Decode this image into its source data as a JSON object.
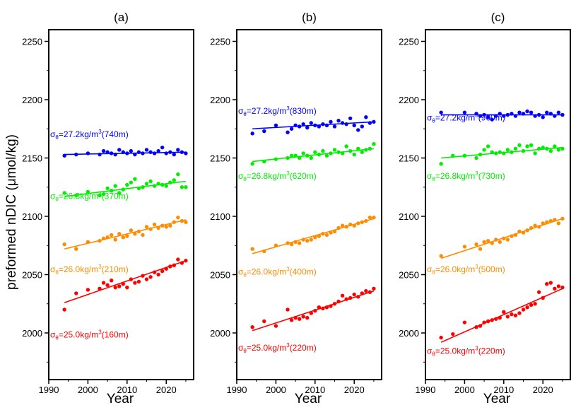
{
  "figure": {
    "ylabel": "preformed nDIC (μmol/kg)",
    "xlabel": "Year"
  },
  "chart_data": [
    {
      "type": "scatter",
      "title": "(a)",
      "xlabel": "Year",
      "ylabel": "preformed nDIC (μmol/kg)",
      "xlim": [
        1990,
        2027
      ],
      "ylim": [
        1960,
        2260
      ],
      "x_ticks": [
        1990,
        2000,
        2010,
        2020
      ],
      "y_ticks": [
        2000,
        2050,
        2100,
        2150,
        2200,
        2250
      ],
      "grid": false,
      "series": [
        {
          "label_prefix": "σ",
          "label_sub": "θ",
          "label_main": "=27.2kg/m",
          "label_sup": "3",
          "label_tail": "(740m)",
          "color": "#0000ff",
          "x": [
            1994,
            1997,
            2000,
            2003,
            2004,
            2005,
            2006,
            2007,
            2008,
            2009,
            2010,
            2011,
            2012,
            2013,
            2014,
            2015,
            2016,
            2017,
            2018,
            2019,
            2020,
            2021,
            2022,
            2023,
            2024,
            2025
          ],
          "y": [
            2152,
            2153,
            2154,
            2153,
            2156,
            2155,
            2154,
            2153,
            2157,
            2155,
            2154,
            2156,
            2153,
            2155,
            2154,
            2157,
            2155,
            2154,
            2156,
            2159,
            2154,
            2155,
            2153,
            2157,
            2155,
            2154
          ],
          "trend": [
            [
              1994,
              2153
            ],
            [
              2025,
              2155
            ]
          ]
        },
        {
          "label_prefix": "σ",
          "label_sub": "θ",
          "label_main": "=26.8kg/m",
          "label_sup": "3",
          "label_tail": "(370m)",
          "color": "#00ee00",
          "x": [
            1994,
            1997,
            2000,
            2003,
            2004,
            2005,
            2006,
            2007,
            2008,
            2009,
            2010,
            2011,
            2012,
            2013,
            2014,
            2015,
            2016,
            2017,
            2018,
            2019,
            2020,
            2021,
            2022,
            2023,
            2024,
            2025
          ],
          "y": [
            2120,
            2118,
            2121,
            2118,
            2119,
            2124,
            2122,
            2126,
            2120,
            2123,
            2127,
            2129,
            2132,
            2124,
            2125,
            2128,
            2130,
            2126,
            2128,
            2127,
            2126,
            2129,
            2131,
            2136,
            2125,
            2125
          ],
          "trend": [
            [
              1994,
              2117
            ],
            [
              2025,
              2130
            ]
          ]
        },
        {
          "label_prefix": "σ",
          "label_sub": "θ",
          "label_main": "=26.0kg/m",
          "label_sup": "3",
          "label_tail": "(210m)",
          "color": "#ff8c00",
          "x": [
            1994,
            1997,
            2000,
            2003,
            2004,
            2005,
            2006,
            2007,
            2008,
            2009,
            2010,
            2011,
            2012,
            2013,
            2014,
            2015,
            2016,
            2017,
            2018,
            2019,
            2020,
            2021,
            2022,
            2023,
            2024,
            2025
          ],
          "y": [
            2076,
            2072,
            2078,
            2079,
            2081,
            2082,
            2084,
            2080,
            2085,
            2082,
            2083,
            2088,
            2085,
            2087,
            2084,
            2091,
            2089,
            2093,
            2090,
            2092,
            2091,
            2092,
            2095,
            2099,
            2096,
            2095
          ],
          "trend": [
            [
              1994,
              2072
            ],
            [
              2025,
              2097
            ]
          ]
        },
        {
          "label_prefix": "σ",
          "label_sub": "θ",
          "label_main": "=25.0kg/m",
          "label_sup": "3",
          "label_tail": "(160m)",
          "color": "#ff0000",
          "x": [
            1994,
            1997,
            2000,
            2003,
            2004,
            2005,
            2006,
            2007,
            2008,
            2009,
            2010,
            2011,
            2012,
            2013,
            2014,
            2015,
            2016,
            2017,
            2018,
            2019,
            2020,
            2021,
            2022,
            2023,
            2024,
            2025
          ],
          "y": [
            2020,
            2034,
            2037,
            2038,
            2043,
            2041,
            2045,
            2039,
            2040,
            2042,
            2039,
            2046,
            2043,
            2044,
            2049,
            2046,
            2048,
            2052,
            2050,
            2053,
            2055,
            2057,
            2058,
            2063,
            2060,
            2062
          ],
          "trend": [
            [
              1994,
              2026
            ],
            [
              2025,
              2062
            ]
          ]
        }
      ]
    },
    {
      "type": "scatter",
      "title": "(b)",
      "xlabel": "Year",
      "xlim": [
        1990,
        2027
      ],
      "ylim": [
        1960,
        2260
      ],
      "x_ticks": [
        1990,
        2000,
        2010,
        2020
      ],
      "y_ticks": [
        2000,
        2050,
        2100,
        2150,
        2200,
        2250
      ],
      "grid": false,
      "series": [
        {
          "label_prefix": "σ",
          "label_sub": "θ",
          "label_main": "=27.2kg/m",
          "label_sup": "3",
          "label_tail": "(830m)",
          "color": "#0000ff",
          "x": [
            1994,
            1997,
            2000,
            2003,
            2004,
            2005,
            2006,
            2007,
            2008,
            2009,
            2010,
            2011,
            2012,
            2013,
            2014,
            2015,
            2016,
            2017,
            2018,
            2019,
            2020,
            2021,
            2022,
            2023,
            2024,
            2025
          ],
          "y": [
            2171,
            2173,
            2178,
            2172,
            2175,
            2178,
            2177,
            2179,
            2176,
            2180,
            2178,
            2177,
            2179,
            2178,
            2181,
            2177,
            2182,
            2180,
            2179,
            2184,
            2178,
            2174,
            2177,
            2185,
            2180,
            2181
          ],
          "trend": [
            [
              1994,
              2175
            ],
            [
              2025,
              2181
            ]
          ]
        },
        {
          "label_prefix": "σ",
          "label_sub": "θ",
          "label_main": "=26.8kg/m",
          "label_sup": "3",
          "label_tail": "(620m)",
          "color": "#00ee00",
          "x": [
            1994,
            1997,
            2000,
            2003,
            2004,
            2005,
            2006,
            2007,
            2008,
            2009,
            2010,
            2011,
            2012,
            2013,
            2014,
            2015,
            2016,
            2017,
            2018,
            2019,
            2020,
            2021,
            2022,
            2023,
            2024,
            2025
          ],
          "y": [
            2145,
            2147,
            2149,
            2150,
            2152,
            2152,
            2150,
            2154,
            2152,
            2150,
            2155,
            2153,
            2156,
            2152,
            2154,
            2157,
            2155,
            2154,
            2160,
            2156,
            2153,
            2158,
            2155,
            2157,
            2158,
            2162
          ],
          "trend": [
            [
              1994,
              2147
            ],
            [
              2025,
              2158
            ]
          ]
        },
        {
          "label_prefix": "σ",
          "label_sub": "θ",
          "label_main": "=26.0kg/m",
          "label_sup": "3",
          "label_tail": "(400m)",
          "color": "#ff8c00",
          "x": [
            1994,
            1997,
            2000,
            2003,
            2004,
            2005,
            2006,
            2007,
            2008,
            2009,
            2010,
            2011,
            2012,
            2013,
            2014,
            2015,
            2016,
            2017,
            2018,
            2019,
            2020,
            2021,
            2022,
            2023,
            2024,
            2025
          ],
          "y": [
            2072,
            2070,
            2075,
            2077,
            2076,
            2078,
            2077,
            2080,
            2079,
            2080,
            2082,
            2083,
            2085,
            2084,
            2086,
            2087,
            2090,
            2092,
            2091,
            2093,
            2092,
            2094,
            2095,
            2096,
            2099,
            2099
          ],
          "trend": [
            [
              1994,
              2068
            ],
            [
              2025,
              2098
            ]
          ]
        },
        {
          "label_prefix": "σ",
          "label_sub": "θ",
          "label_main": "=25.0kg/m",
          "label_sup": "3",
          "label_tail": "(220m)",
          "color": "#ff0000",
          "x": [
            1994,
            1997,
            2000,
            2003,
            2004,
            2005,
            2006,
            2007,
            2008,
            2009,
            2010,
            2011,
            2012,
            2013,
            2014,
            2015,
            2016,
            2017,
            2018,
            2019,
            2020,
            2021,
            2022,
            2023,
            2024,
            2025
          ],
          "y": [
            2005,
            2010,
            2006,
            2020,
            2011,
            2013,
            2012,
            2014,
            2013,
            2017,
            2019,
            2022,
            2021,
            2022,
            2023,
            2025,
            2027,
            2032,
            2029,
            2030,
            2033,
            2031,
            2034,
            2036,
            2035,
            2038
          ],
          "trend": [
            [
              1994,
              2002
            ],
            [
              2025,
              2036
            ]
          ]
        }
      ]
    },
    {
      "type": "scatter",
      "title": "(c)",
      "xlabel": "Year",
      "xlim": [
        1990,
        2027
      ],
      "ylim": [
        1960,
        2260
      ],
      "x_ticks": [
        1990,
        2000,
        2010,
        2020
      ],
      "y_ticks": [
        2000,
        2050,
        2100,
        2150,
        2200,
        2250
      ],
      "grid": false,
      "series": [
        {
          "label_prefix": "σ",
          "label_sub": "θ",
          "label_main": "=27.2kg/m",
          "label_sup": "3",
          "label_tail": "(960m)",
          "color": "#0000ff",
          "x": [
            1994,
            2000,
            2003,
            2004,
            2005,
            2006,
            2007,
            2008,
            2009,
            2010,
            2011,
            2012,
            2013,
            2014,
            2015,
            2016,
            2017,
            2018,
            2019,
            2020,
            2021,
            2022,
            2023,
            2024,
            2025
          ],
          "y": [
            2189,
            2189,
            2188,
            2186,
            2187,
            2185,
            2183,
            2186,
            2188,
            2186,
            2187,
            2188,
            2186,
            2189,
            2188,
            2190,
            2189,
            2186,
            2187,
            2185,
            2189,
            2188,
            2186,
            2189,
            2187
          ],
          "trend": [
            [
              1994,
              2187
            ],
            [
              2025,
              2187
            ]
          ]
        },
        {
          "label_prefix": "σ",
          "label_sub": "θ",
          "label_main": "=26.8kg/m",
          "label_sup": "3",
          "label_tail": "(730m)",
          "color": "#00ee00",
          "x": [
            1994,
            1997,
            2000,
            2003,
            2004,
            2005,
            2006,
            2007,
            2008,
            2009,
            2010,
            2011,
            2012,
            2013,
            2014,
            2015,
            2016,
            2017,
            2018,
            2019,
            2020,
            2021,
            2022,
            2023,
            2024,
            2025
          ],
          "y": [
            2145,
            2152,
            2152,
            2150,
            2153,
            2157,
            2160,
            2155,
            2154,
            2155,
            2154,
            2157,
            2155,
            2158,
            2161,
            2156,
            2160,
            2161,
            2154,
            2158,
            2159,
            2158,
            2156,
            2160,
            2157,
            2158
          ],
          "trend": [
            [
              1994,
              2150
            ],
            [
              2025,
              2159
            ]
          ]
        },
        {
          "label_prefix": "σ",
          "label_sub": "θ",
          "label_main": "=26.0kg/m",
          "label_sup": "3",
          "label_tail": "(500m)",
          "color": "#ff8c00",
          "x": [
            1994,
            2000,
            2003,
            2004,
            2005,
            2006,
            2007,
            2008,
            2009,
            2010,
            2011,
            2012,
            2013,
            2014,
            2015,
            2016,
            2017,
            2018,
            2019,
            2020,
            2021,
            2022,
            2023,
            2024,
            2025
          ],
          "y": [
            2066,
            2074,
            2076,
            2072,
            2078,
            2079,
            2077,
            2080,
            2078,
            2081,
            2080,
            2083,
            2084,
            2087,
            2086,
            2088,
            2090,
            2092,
            2091,
            2094,
            2095,
            2096,
            2097,
            2094,
            2098
          ],
          "trend": [
            [
              1994,
              2064
            ],
            [
              2025,
              2098
            ]
          ]
        },
        {
          "label_prefix": "σ",
          "label_sub": "θ",
          "label_main": "=25.0kg/m",
          "label_sup": "3",
          "label_tail": "(220m)",
          "color": "#ff0000",
          "x": [
            1994,
            1997,
            2000,
            2003,
            2004,
            2005,
            2006,
            2007,
            2008,
            2009,
            2010,
            2011,
            2012,
            2013,
            2014,
            2015,
            2016,
            2017,
            2018,
            2019,
            2020,
            2021,
            2022,
            2023,
            2024,
            2025
          ],
          "y": [
            1996,
            1999,
            2009,
            2005,
            2006,
            2009,
            2010,
            2011,
            2012,
            2013,
            2018,
            2014,
            2016,
            2015,
            2017,
            2020,
            2022,
            2024,
            2025,
            2035,
            2030,
            2042,
            2043,
            2038,
            2040,
            2039
          ],
          "trend": [
            [
              1994,
              1992
            ],
            [
              2025,
              2038
            ]
          ]
        }
      ]
    }
  ],
  "labels_layout": [
    [
      2168,
      2115,
      2052,
      1996
    ],
    [
      2188,
      2132,
      2050,
      1985
    ],
    [
      2182,
      2132,
      2052,
      1982
    ]
  ]
}
